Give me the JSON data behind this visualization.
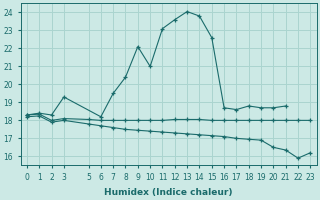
{
  "xlabel": "Humidex (Indice chaleur)",
  "bg_color": "#cce9e5",
  "grid_color": "#aad4cf",
  "line_color": "#1a6b6b",
  "xlim": [
    -0.5,
    23.5
  ],
  "ylim": [
    15.5,
    24.5
  ],
  "xticks": [
    0,
    1,
    2,
    3,
    5,
    6,
    7,
    8,
    9,
    10,
    11,
    12,
    13,
    14,
    15,
    16,
    17,
    18,
    19,
    20,
    21,
    22,
    23
  ],
  "yticks": [
    16,
    17,
    18,
    19,
    20,
    21,
    22,
    23,
    24
  ],
  "lines": [
    {
      "x": [
        0,
        1,
        2,
        3,
        6,
        7,
        8,
        9,
        10,
        11,
        12,
        13,
        14,
        15,
        16,
        17,
        18,
        19,
        20,
        21
      ],
      "y": [
        18.3,
        18.4,
        18.3,
        19.3,
        18.2,
        19.5,
        20.4,
        22.1,
        21.0,
        23.1,
        23.6,
        24.05,
        23.8,
        22.6,
        18.7,
        18.6,
        18.8,
        18.7,
        18.7,
        18.8
      ]
    },
    {
      "x": [
        0,
        1,
        2,
        3,
        5,
        6,
        7,
        8,
        9,
        10,
        11,
        12,
        13,
        14,
        15,
        16,
        17,
        18,
        19,
        20,
        21,
        22,
        23
      ],
      "y": [
        18.3,
        18.35,
        18.0,
        18.1,
        18.05,
        18.0,
        18.0,
        18.0,
        18.0,
        18.0,
        18.0,
        18.05,
        18.05,
        18.05,
        18.0,
        18.0,
        18.0,
        18.0,
        18.0,
        18.0,
        18.0,
        18.0,
        18.0
      ]
    },
    {
      "x": [
        0,
        1,
        2,
        3,
        5,
        6,
        7,
        8,
        9,
        10,
        11,
        12,
        13,
        14,
        15,
        16,
        17,
        18,
        19,
        20,
        21,
        22,
        23
      ],
      "y": [
        18.2,
        18.25,
        17.9,
        18.0,
        17.8,
        17.7,
        17.6,
        17.5,
        17.45,
        17.4,
        17.35,
        17.3,
        17.25,
        17.2,
        17.15,
        17.1,
        17.0,
        16.95,
        16.9,
        16.5,
        16.35,
        15.9,
        16.2
      ]
    }
  ]
}
